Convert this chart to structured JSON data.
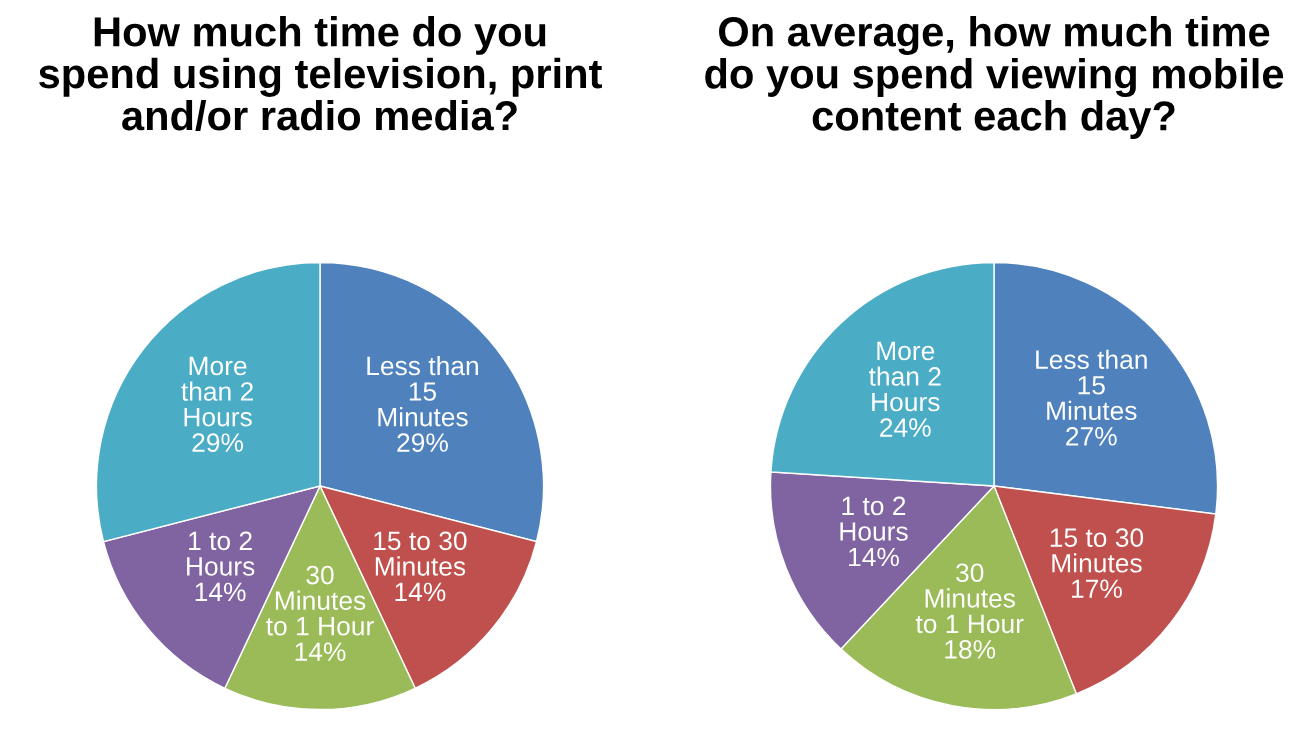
{
  "chart_data": [
    {
      "type": "pie",
      "title": "How much time do you\nspend using television, print\nand/or radio media?",
      "categories": [
        "Less than\n15\nMinutes",
        "15 to 30\nMinutes",
        "30\nMinutes\nto 1 Hour",
        "1 to 2\nHours",
        "More\nthan 2\nHours"
      ],
      "values": [
        29,
        14,
        14,
        14,
        29
      ],
      "value_labels": [
        "29%",
        "14%",
        "14%",
        "14%",
        "29%"
      ],
      "colors": [
        "#4f81bd",
        "#c0504d",
        "#9bbb59",
        "#8064a2",
        "#4bacc6"
      ],
      "legend": false
    },
    {
      "type": "pie",
      "title": "On average, how much time\ndo you spend viewing mobile\ncontent each day?",
      "categories": [
        "Less than\n15\nMinutes",
        "15 to 30\nMinutes",
        "30\nMinutes\nto 1 Hour",
        "1 to 2\nHours",
        "More\nthan 2\nHours"
      ],
      "values": [
        27,
        17,
        18,
        14,
        24
      ],
      "value_labels": [
        "27%",
        "17%",
        "18%",
        "14%",
        "24%"
      ],
      "colors": [
        "#4f81bd",
        "#c0504d",
        "#9bbb59",
        "#8064a2",
        "#4bacc6"
      ],
      "legend": false
    }
  ]
}
